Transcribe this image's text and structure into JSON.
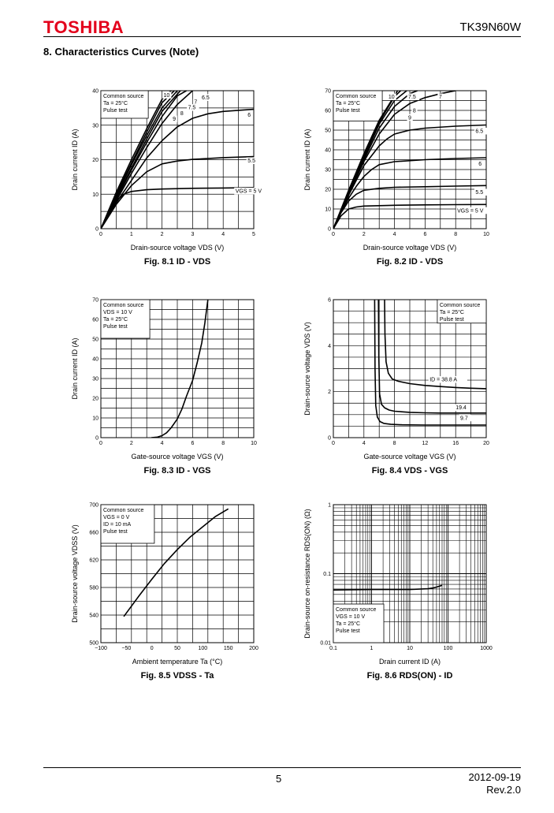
{
  "header": {
    "logo": "TOSHIBA",
    "part_number": "TK39N60W",
    "section_title": "8.  Characteristics Curves (Note)"
  },
  "footer": {
    "page": "5",
    "date": "2012-09-19",
    "revision": "Rev.2.0"
  },
  "chart_data": [
    {
      "id": "fig81",
      "type": "line",
      "caption": "Fig. 8.1   ID - VDS",
      "xlabel": "Drain-source voltage   VDS   (V)",
      "ylabel": "Drain current   ID   (A)",
      "xlim": [
        0,
        5
      ],
      "ylim": [
        0,
        40
      ],
      "xscale": "linear",
      "yscale": "linear",
      "xticks": [
        "0",
        "1",
        "2",
        "3",
        "4",
        "5"
      ],
      "yticks": [
        "0",
        "10",
        "20",
        "30",
        "40"
      ],
      "legend": [
        "Common source",
        "Ta = 25°C",
        "Pulse test"
      ],
      "legend_pos": "top-left",
      "series": [
        {
          "name": "VGS = 5 V",
          "x": [
            0,
            0.25,
            0.5,
            0.75,
            1,
            1.5,
            2,
            3,
            4,
            5
          ],
          "y": [
            0,
            4.5,
            8,
            10,
            10.8,
            11.3,
            11.5,
            11.7,
            11.8,
            11.9
          ]
        },
        {
          "name": "5.5",
          "x": [
            0,
            0.5,
            1,
            1.5,
            2,
            2.5,
            3,
            4,
            5
          ],
          "y": [
            0,
            7,
            12.5,
            16.5,
            18.8,
            19.6,
            20.1,
            20.6,
            20.9
          ]
        },
        {
          "name": "6",
          "x": [
            0,
            0.5,
            1,
            1.5,
            2,
            2.5,
            3,
            3.5,
            4,
            5
          ],
          "y": [
            0,
            7.5,
            14,
            20.5,
            25.5,
            29.5,
            32,
            33.3,
            34,
            34.6
          ]
        },
        {
          "name": "6.5",
          "x": [
            0,
            0.5,
            1,
            1.5,
            2,
            2.5,
            3
          ],
          "y": [
            0,
            8,
            16,
            23.5,
            30.5,
            36,
            40
          ]
        },
        {
          "name": "7",
          "x": [
            0,
            0.5,
            1,
            1.5,
            2,
            2.5,
            2.8
          ],
          "y": [
            0,
            8.5,
            17,
            25,
            32.5,
            38.5,
            40
          ]
        },
        {
          "name": "7.5",
          "x": [
            0,
            0.5,
            1,
            1.5,
            2,
            2.6
          ],
          "y": [
            0,
            9,
            17.5,
            26,
            34,
            40
          ]
        },
        {
          "name": "8",
          "x": [
            0,
            0.5,
            1,
            1.5,
            2,
            2.5
          ],
          "y": [
            0,
            9.5,
            18.5,
            27,
            35,
            40
          ]
        },
        {
          "name": "9",
          "x": [
            0,
            0.5,
            1,
            1.5,
            2,
            2.4
          ],
          "y": [
            0,
            10,
            19,
            28,
            36.5,
            40
          ]
        },
        {
          "name": "10",
          "x": [
            0,
            0.5,
            1,
            1.5,
            2,
            2.3
          ],
          "y": [
            0,
            10.5,
            20,
            29,
            37.5,
            40
          ]
        }
      ],
      "labels": [
        {
          "text": "VGS = 5 V",
          "x": 4.4,
          "y": 10.4
        },
        {
          "text": "5.5",
          "x": 4.8,
          "y": 19.2
        },
        {
          "text": "6",
          "x": 4.8,
          "y": 32.5
        },
        {
          "text": "6.5",
          "x": 3.3,
          "y": 37.5
        },
        {
          "text": "7",
          "x": 3.05,
          "y": 36.2
        },
        {
          "text": "7.5",
          "x": 2.85,
          "y": 34.6
        },
        {
          "text": "8",
          "x": 2.6,
          "y": 32.9
        },
        {
          "text": "9",
          "x": 2.35,
          "y": 31.3
        },
        {
          "text": "10",
          "x": 2.05,
          "y": 38.2
        }
      ]
    },
    {
      "id": "fig82",
      "type": "line",
      "caption": "Fig. 8.2   ID - VDS",
      "xlabel": "Drain-source voltage   VDS   (V)",
      "ylabel": "Drain current   ID   (A)",
      "xlim": [
        0,
        10
      ],
      "ylim": [
        0,
        70
      ],
      "xscale": "linear",
      "yscale": "linear",
      "xticks": [
        "0",
        "2",
        "4",
        "6",
        "8",
        "10"
      ],
      "yticks": [
        "0",
        "10",
        "20",
        "30",
        "40",
        "50",
        "60",
        "70"
      ],
      "legend": [
        "Common source",
        "Ta = 25°C",
        "Pulse test"
      ],
      "legend_pos": "top-left",
      "series": [
        {
          "name": "VGS = 5 V",
          "x": [
            0,
            0.5,
            1,
            1.5,
            2,
            4,
            6,
            8,
            10
          ],
          "y": [
            0,
            6.5,
            10,
            11,
            11.5,
            11.9,
            12.1,
            12.2,
            12.3
          ]
        },
        {
          "name": "5.5",
          "x": [
            0,
            0.5,
            1,
            1.5,
            2,
            3,
            4,
            6,
            8,
            10
          ],
          "y": [
            0,
            8,
            14,
            17.5,
            19.5,
            20.5,
            21,
            21.3,
            21.6,
            21.9
          ]
        },
        {
          "name": "6",
          "x": [
            0,
            0.5,
            1,
            1.5,
            2,
            2.5,
            3,
            4,
            6,
            8,
            10
          ],
          "y": [
            0,
            8.5,
            15.5,
            21.5,
            26.5,
            30,
            32.5,
            34,
            35,
            35.6,
            36
          ]
        },
        {
          "name": "6.5",
          "x": [
            0,
            1,
            2,
            3,
            3.5,
            4,
            5,
            6,
            8,
            10
          ],
          "y": [
            0,
            17,
            32,
            42,
            45.5,
            48,
            50,
            51,
            52,
            52.6
          ]
        },
        {
          "name": "7",
          "x": [
            0,
            1,
            2,
            3,
            4,
            5,
            6,
            7,
            8
          ],
          "y": [
            0,
            17.5,
            34,
            48,
            58,
            63.5,
            66.5,
            68.5,
            70
          ]
        },
        {
          "name": "7.5",
          "x": [
            0,
            1,
            2,
            3,
            4,
            5,
            5.5
          ],
          "y": [
            0,
            18,
            35,
            51,
            62,
            68.5,
            70
          ]
        },
        {
          "name": "8",
          "x": [
            0,
            1,
            2,
            3,
            4,
            4.8
          ],
          "y": [
            0,
            18.5,
            36,
            53,
            65,
            70
          ]
        },
        {
          "name": "9",
          "x": [
            0,
            1,
            2,
            3,
            4,
            4.4
          ],
          "y": [
            0,
            19,
            37,
            54,
            67,
            70
          ]
        },
        {
          "name": "10",
          "x": [
            0,
            1,
            2,
            3,
            4.2
          ],
          "y": [
            0,
            19.5,
            38,
            55,
            70
          ]
        }
      ],
      "labels": [
        {
          "text": "VGS = 5 V",
          "x": 8.1,
          "y": 8.3
        },
        {
          "text": "5.5",
          "x": 9.3,
          "y": 17.6
        },
        {
          "text": "6",
          "x": 9.5,
          "y": 32
        },
        {
          "text": "6.5",
          "x": 9.3,
          "y": 48.6
        },
        {
          "text": "7",
          "x": 6.9,
          "y": 66
        },
        {
          "text": "7.5",
          "x": 4.9,
          "y": 66
        },
        {
          "text": "8",
          "x": 5.2,
          "y": 59
        },
        {
          "text": "9",
          "x": 4.9,
          "y": 55.5
        },
        {
          "text": "10",
          "x": 3.6,
          "y": 66
        }
      ]
    },
    {
      "id": "fig83",
      "type": "line",
      "caption": "Fig. 8.3   ID - VGS",
      "xlabel": "Gate-source voltage   VGS   (V)",
      "ylabel": "Drain current   ID   (A)",
      "xlim": [
        0,
        10
      ],
      "ylim": [
        0,
        70
      ],
      "xscale": "linear",
      "yscale": "linear",
      "xticks": [
        "0",
        "2",
        "4",
        "6",
        "8",
        "10"
      ],
      "yticks": [
        "0",
        "10",
        "20",
        "30",
        "40",
        "50",
        "60",
        "70"
      ],
      "legend": [
        "Common source",
        "VDS = 10 V",
        "Ta = 25°C",
        "Pulse test"
      ],
      "legend_pos": "top-left",
      "series": [
        {
          "name": "",
          "x": [
            3.3,
            3.7,
            4,
            4.3,
            4.6,
            5,
            5.3,
            5.6,
            6,
            6.3,
            6.6,
            6.8,
            7
          ],
          "y": [
            0,
            0.3,
            1,
            2.5,
            5,
            9.5,
            14.5,
            21,
            29,
            38,
            48,
            58,
            70
          ]
        }
      ],
      "labels": []
    },
    {
      "id": "fig84",
      "type": "line",
      "caption": "Fig. 8.4   VDS - VGS",
      "xlabel": "Gate-source voltage   VGS   (V)",
      "ylabel": "Drain-source voltage   VDS   (V)",
      "xlim": [
        0,
        20
      ],
      "ylim": [
        0,
        6
      ],
      "xscale": "linear",
      "yscale": "linear",
      "xticks": [
        "0",
        "4",
        "8",
        "12",
        "16",
        "20"
      ],
      "yticks": [
        "0",
        "2",
        "4",
        "6"
      ],
      "legend": [
        "Common source",
        "Ta = 25°C",
        "Pulse test"
      ],
      "legend_pos": "top-right",
      "series": [
        {
          "name": "ID = 38.8 A",
          "x": [
            6.7,
            6.75,
            6.9,
            7.2,
            7.7,
            8.5,
            10,
            12,
            14,
            16,
            18,
            20
          ],
          "y": [
            6,
            4.5,
            3.3,
            2.8,
            2.55,
            2.45,
            2.35,
            2.27,
            2.22,
            2.18,
            2.15,
            2.13
          ]
        },
        {
          "name": "19.4",
          "x": [
            5.9,
            5.95,
            6.05,
            6.3,
            6.7,
            7.3,
            8,
            10,
            12,
            14,
            16,
            18,
            20
          ],
          "y": [
            6,
            3.5,
            1.9,
            1.45,
            1.3,
            1.2,
            1.15,
            1.1,
            1.08,
            1.07,
            1.07,
            1.07,
            1.07
          ]
        },
        {
          "name": "9.7",
          "x": [
            5.4,
            5.45,
            5.55,
            5.75,
            6.1,
            6.6,
            7.5,
            9,
            12,
            16,
            20
          ],
          "y": [
            6,
            3,
            1.4,
            0.9,
            0.7,
            0.62,
            0.58,
            0.56,
            0.55,
            0.55,
            0.55
          ]
        }
      ],
      "labels": [
        {
          "text": "ID = 38.8 A",
          "x": 12.6,
          "y": 2.45
        },
        {
          "text": "19.4",
          "x": 16,
          "y": 1.23
        },
        {
          "text": "9.7",
          "x": 16.6,
          "y": 0.78
        }
      ]
    },
    {
      "id": "fig85",
      "type": "line",
      "caption": "Fig. 8.5   VDSS - Ta",
      "xlabel": "Ambient temperature   Ta   (°C)",
      "ylabel": "Drain-source voltage   VDSS   (V)",
      "xlim": [
        -100,
        200
      ],
      "ylim": [
        500,
        700
      ],
      "xscale": "linear",
      "yscale": "linear",
      "xticks": [
        "−100",
        "−50",
        "0",
        "50",
        "100",
        "150",
        "200"
      ],
      "yticks": [
        "500",
        "540",
        "580",
        "620",
        "660",
        "700"
      ],
      "legend": [
        "Common source",
        "VGS = 0 V",
        "ID = 10 mA",
        "Pulse test"
      ],
      "legend_pos": "top-left",
      "series": [
        {
          "name": "",
          "x": [
            -55,
            -25,
            0,
            25,
            50,
            75,
            100,
            125,
            150
          ],
          "y": [
            538,
            568,
            592,
            615,
            635,
            653,
            668,
            683,
            694
          ]
        }
      ],
      "labels": []
    },
    {
      "id": "fig86",
      "type": "line",
      "caption": "Fig. 8.6   RDS(ON) - ID",
      "xlabel": "Drain current   ID   (A)",
      "ylabel": "Drain-source on-resistance   RDS(ON)   (Ω)",
      "xlim": [
        0.1,
        1000
      ],
      "ylim": [
        0.01,
        1
      ],
      "xscale": "log",
      "yscale": "log",
      "xticks": [
        "0.1",
        "1",
        "10",
        "100",
        "1000"
      ],
      "yticks": [
        "0.01",
        "0.1",
        "1"
      ],
      "legend": [
        "Common source",
        "VGS = 10 V",
        "Ta = 25°C",
        "Pulse test"
      ],
      "legend_pos": "bottom-left",
      "series": [
        {
          "name": "",
          "x": [
            0.1,
            1,
            5,
            10,
            20,
            30,
            40,
            50,
            60,
            70
          ],
          "y": [
            0.058,
            0.059,
            0.059,
            0.059,
            0.06,
            0.0605,
            0.062,
            0.064,
            0.066,
            0.068
          ]
        }
      ],
      "labels": []
    }
  ]
}
